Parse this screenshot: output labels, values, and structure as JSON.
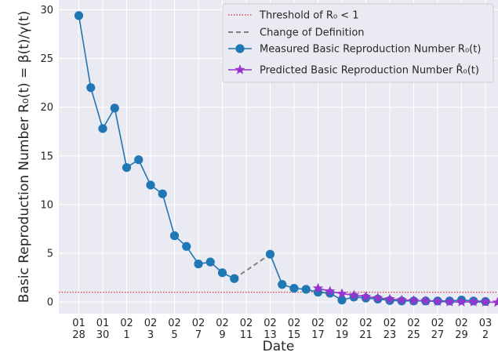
{
  "chart_data": {
    "type": "line",
    "xlabel": "Date",
    "ylabel": "Basic Reproduction Number R₀(t) = β(t)/γ(t)",
    "ylim": [
      -1.2,
      31
    ],
    "yticks": [
      0,
      5,
      10,
      15,
      20,
      25,
      30
    ],
    "xticks": [
      {
        "i": 0,
        "top": "01",
        "bottom": "28"
      },
      {
        "i": 2,
        "top": "01",
        "bottom": "30"
      },
      {
        "i": 4,
        "top": "02",
        "bottom": "1"
      },
      {
        "i": 6,
        "top": "02",
        "bottom": "3"
      },
      {
        "i": 8,
        "top": "02",
        "bottom": "5"
      },
      {
        "i": 10,
        "top": "02",
        "bottom": "7"
      },
      {
        "i": 12,
        "top": "02",
        "bottom": "9"
      },
      {
        "i": 14,
        "top": "02",
        "bottom": "11"
      },
      {
        "i": 16,
        "top": "02",
        "bottom": "13"
      },
      {
        "i": 18,
        "top": "02",
        "bottom": "15"
      },
      {
        "i": 20,
        "top": "02",
        "bottom": "17"
      },
      {
        "i": 22,
        "top": "02",
        "bottom": "19"
      },
      {
        "i": 24,
        "top": "02",
        "bottom": "21"
      },
      {
        "i": 26,
        "top": "02",
        "bottom": "23"
      },
      {
        "i": 28,
        "top": "02",
        "bottom": "25"
      },
      {
        "i": 30,
        "top": "02",
        "bottom": "27"
      },
      {
        "i": 32,
        "top": "02",
        "bottom": "29"
      },
      {
        "i": 34,
        "top": "03",
        "bottom": "2"
      }
    ],
    "threshold": 1,
    "series": [
      {
        "name": "Measured Basic Reproduction Number R₀(t)",
        "color": "#1f77b4",
        "marker": "circle",
        "points": [
          {
            "i": 0,
            "y": 29.4
          },
          {
            "i": 1,
            "y": 22.0
          },
          {
            "i": 2,
            "y": 17.8
          },
          {
            "i": 3,
            "y": 19.9
          },
          {
            "i": 4,
            "y": 13.8
          },
          {
            "i": 5,
            "y": 14.6
          },
          {
            "i": 6,
            "y": 12.0
          },
          {
            "i": 7,
            "y": 11.1
          },
          {
            "i": 8,
            "y": 6.8
          },
          {
            "i": 9,
            "y": 5.7
          },
          {
            "i": 10,
            "y": 3.9
          },
          {
            "i": 11,
            "y": 4.1
          },
          {
            "i": 12,
            "y": 3.0
          },
          {
            "i": 13,
            "y": 2.4
          },
          {
            "i": 16,
            "y": 4.9
          },
          {
            "i": 17,
            "y": 1.8
          },
          {
            "i": 18,
            "y": 1.4
          },
          {
            "i": 19,
            "y": 1.3
          },
          {
            "i": 20,
            "y": 1.0
          },
          {
            "i": 21,
            "y": 0.9
          },
          {
            "i": 22,
            "y": 0.2
          },
          {
            "i": 23,
            "y": 0.5
          },
          {
            "i": 24,
            "y": 0.4
          },
          {
            "i": 25,
            "y": 0.3
          },
          {
            "i": 26,
            "y": 0.15
          },
          {
            "i": 27,
            "y": 0.1
          },
          {
            "i": 28,
            "y": 0.1
          },
          {
            "i": 29,
            "y": 0.1
          },
          {
            "i": 30,
            "y": 0.1
          },
          {
            "i": 31,
            "y": 0.1
          },
          {
            "i": 32,
            "y": 0.2
          },
          {
            "i": 33,
            "y": 0.1
          },
          {
            "i": 34,
            "y": 0.05
          }
        ],
        "segments": [
          [
            0,
            13
          ],
          [
            16,
            34
          ]
        ]
      },
      {
        "name": "Predicted Basic Reproduction Number R̂₀(t)",
        "color": "#9a32cd",
        "marker": "star",
        "points": [
          {
            "i": 20,
            "y": 1.4
          },
          {
            "i": 21,
            "y": 1.1
          },
          {
            "i": 22,
            "y": 0.85
          },
          {
            "i": 23,
            "y": 0.7
          },
          {
            "i": 24,
            "y": 0.55
          },
          {
            "i": 25,
            "y": 0.4
          },
          {
            "i": 26,
            "y": 0.3
          },
          {
            "i": 27,
            "y": 0.2
          },
          {
            "i": 28,
            "y": 0.15
          },
          {
            "i": 29,
            "y": 0.1
          },
          {
            "i": 30,
            "y": 0.05
          },
          {
            "i": 31,
            "y": 0.0
          },
          {
            "i": 32,
            "y": 0.0
          },
          {
            "i": 33,
            "y": 0.0
          },
          {
            "i": 34,
            "y": 0.0
          },
          {
            "i": 35,
            "y": -0.05
          }
        ]
      },
      {
        "name": "Change of Definition",
        "color": "#808080",
        "points": [
          {
            "i": 13,
            "y": 2.4
          },
          {
            "i": 16,
            "y": 4.9
          }
        ]
      }
    ],
    "legend": {
      "position": "top-right",
      "items": [
        {
          "label": "Threshold of R₀ < 1",
          "style": "dotted",
          "color": "#d62728"
        },
        {
          "label": "Change of Definition",
          "style": "dashed",
          "color": "#808080"
        },
        {
          "label": "Measured Basic Reproduction Number R₀(t)",
          "style": "circle",
          "color": "#1f77b4"
        },
        {
          "label": "Predicted Basic Reproduction Number R̂₀(t)",
          "style": "star",
          "color": "#9a32cd"
        }
      ]
    },
    "grid": true,
    "style": "seaborn-darkgrid"
  }
}
